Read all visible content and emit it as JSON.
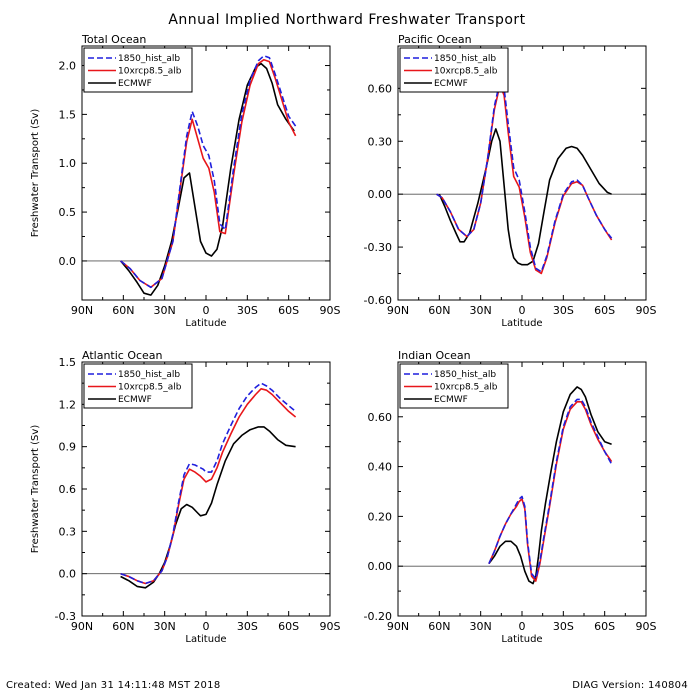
{
  "title": "Annual Implied Northward Freshwater Transport",
  "footer": {
    "created": "Created: Wed Jan 31 14:11:48 MST 2018",
    "version": "DIAG Version: 140804"
  },
  "colors": {
    "hist": "#1f1fdd",
    "rcp": "#e8161a",
    "ecmwf": "#000000",
    "zero_line": "#555555",
    "frame": "#000000"
  },
  "chart_data": [
    {
      "type": "line",
      "title": "Total Ocean",
      "xlabel": "Latitude",
      "ylabel": "Freshwater Transport (Sv)",
      "xlim": [
        90,
        -90
      ],
      "ylim": [
        -0.4,
        2.2
      ],
      "yticks": [
        2.0,
        1.5,
        1.0,
        0.5,
        0.0
      ],
      "ytick_labels": [
        "2.0",
        "1.5",
        "1.0",
        "0.5",
        "0.0"
      ],
      "xticks": [
        90,
        60,
        30,
        0,
        -30,
        -60,
        -90
      ],
      "xtick_labels": [
        "90N",
        "60N",
        "30N",
        "0",
        "30S",
        "60S",
        "90S"
      ],
      "legend": [
        "1850_hist_alb",
        "10xrcp8.5_alb",
        "ECMWF"
      ],
      "series": [
        {
          "name": "1850_hist_alb",
          "x": [
            62,
            55,
            48,
            40,
            32,
            24,
            18,
            14,
            10,
            6,
            2,
            -2,
            -6,
            -10,
            -14,
            -20,
            -26,
            -32,
            -38,
            -42,
            -46,
            -50,
            -55,
            -60,
            -65
          ],
          "y": [
            0.0,
            -0.08,
            -0.2,
            -0.27,
            -0.18,
            0.2,
            0.85,
            1.28,
            1.53,
            1.38,
            1.18,
            1.08,
            0.82,
            0.38,
            0.32,
            0.95,
            1.5,
            1.85,
            2.05,
            2.1,
            2.08,
            1.92,
            1.7,
            1.48,
            1.38
          ]
        },
        {
          "name": "10xrcp8.5_alb",
          "x": [
            62,
            55,
            48,
            40,
            32,
            24,
            18,
            14,
            10,
            6,
            2,
            -2,
            -6,
            -10,
            -14,
            -20,
            -26,
            -32,
            -38,
            -42,
            -46,
            -50,
            -55,
            -60,
            -65
          ],
          "y": [
            0.0,
            -0.08,
            -0.2,
            -0.27,
            -0.18,
            0.2,
            0.82,
            1.22,
            1.45,
            1.25,
            1.05,
            0.95,
            0.7,
            0.3,
            0.28,
            0.88,
            1.42,
            1.8,
            2.02,
            2.06,
            2.04,
            1.88,
            1.65,
            1.42,
            1.28
          ]
        },
        {
          "name": "ECMWF",
          "x": [
            62,
            56,
            50,
            45,
            40,
            35,
            30,
            25,
            20,
            16,
            12,
            8,
            4,
            0,
            -4,
            -8,
            -12,
            -18,
            -24,
            -30,
            -36,
            -40,
            -44,
            -48,
            -52,
            -58,
            -64
          ],
          "y": [
            0.0,
            -0.1,
            -0.22,
            -0.33,
            -0.35,
            -0.25,
            -0.05,
            0.2,
            0.55,
            0.85,
            0.9,
            0.55,
            0.2,
            0.08,
            0.05,
            0.12,
            0.35,
            0.95,
            1.45,
            1.8,
            1.98,
            2.02,
            1.97,
            1.82,
            1.6,
            1.45,
            1.33
          ]
        }
      ]
    },
    {
      "type": "line",
      "title": "Pacific Ocean",
      "xlabel": "Latitude",
      "ylabel": "",
      "xlim": [
        90,
        -90
      ],
      "ylim": [
        -0.6,
        0.84
      ],
      "yticks": [
        0.6,
        0.3,
        0.0,
        -0.3,
        -0.6
      ],
      "ytick_labels": [
        "0.60",
        "0.30",
        "0.00",
        "-0.30",
        "-0.60"
      ],
      "xticks": [
        90,
        60,
        30,
        0,
        -30,
        -60,
        -90
      ],
      "xtick_labels": [
        "90N",
        "60N",
        "30N",
        "0",
        "30S",
        "60S",
        "90S"
      ],
      "legend": [
        "1850_hist_alb",
        "10xrcp8.5_alb",
        "ECMWF"
      ],
      "series": [
        {
          "name": "1850_hist_alb",
          "x": [
            62,
            58,
            52,
            46,
            40,
            35,
            30,
            25,
            20,
            16,
            13,
            10,
            6,
            2,
            -2,
            -6,
            -10,
            -14,
            -18,
            -24,
            -30,
            -36,
            -40,
            -44,
            -48,
            -54,
            -60,
            -65
          ],
          "y": [
            0.0,
            -0.02,
            -0.1,
            -0.2,
            -0.24,
            -0.2,
            -0.05,
            0.2,
            0.5,
            0.64,
            0.6,
            0.4,
            0.15,
            0.08,
            -0.1,
            -0.3,
            -0.42,
            -0.44,
            -0.35,
            -0.15,
            0.0,
            0.07,
            0.08,
            0.05,
            -0.02,
            -0.12,
            -0.2,
            -0.25
          ]
        },
        {
          "name": "10xrcp8.5_alb",
          "x": [
            62,
            58,
            52,
            46,
            40,
            35,
            30,
            25,
            20,
            16,
            13,
            10,
            6,
            2,
            -2,
            -6,
            -10,
            -14,
            -18,
            -24,
            -30,
            -36,
            -40,
            -44,
            -48,
            -54,
            -60,
            -65
          ],
          "y": [
            0.0,
            -0.02,
            -0.1,
            -0.2,
            -0.24,
            -0.2,
            -0.05,
            0.2,
            0.48,
            0.62,
            0.56,
            0.35,
            0.1,
            0.04,
            -0.13,
            -0.33,
            -0.43,
            -0.45,
            -0.36,
            -0.16,
            -0.01,
            0.06,
            0.07,
            0.05,
            -0.02,
            -0.12,
            -0.2,
            -0.26
          ]
        },
        {
          "name": "ECMWF",
          "x": [
            60,
            56,
            52,
            48,
            45,
            42,
            38,
            32,
            26,
            22,
            19,
            16,
            13,
            10,
            8,
            6,
            3,
            0,
            -4,
            -8,
            -12,
            -16,
            -20,
            -26,
            -32,
            -36,
            -40,
            -44,
            -50,
            -56,
            -62,
            -65
          ],
          "y": [
            0.0,
            -0.07,
            -0.15,
            -0.22,
            -0.27,
            -0.27,
            -0.22,
            -0.05,
            0.15,
            0.3,
            0.37,
            0.3,
            0.05,
            -0.2,
            -0.3,
            -0.36,
            -0.39,
            -0.4,
            -0.4,
            -0.38,
            -0.28,
            -0.1,
            0.08,
            0.2,
            0.26,
            0.27,
            0.26,
            0.22,
            0.14,
            0.06,
            0.01,
            0.0
          ]
        }
      ]
    },
    {
      "type": "line",
      "title": "Atlantic Ocean",
      "xlabel": "Latitude",
      "ylabel": "Freshwater Transport (Sv)",
      "xlim": [
        90,
        -90
      ],
      "ylim": [
        -0.3,
        1.5
      ],
      "yticks": [
        1.5,
        1.2,
        0.9,
        0.6,
        0.3,
        0.0,
        -0.3
      ],
      "ytick_labels": [
        "1.5",
        "1.2",
        "0.9",
        "0.6",
        "0.3",
        "0.0",
        "-0.3"
      ],
      "xticks": [
        90,
        60,
        30,
        0,
        -30,
        -60,
        -90
      ],
      "xtick_labels": [
        "90N",
        "60N",
        "30N",
        "0",
        "30S",
        "60S",
        "90S"
      ],
      "legend": [
        "1850_hist_alb",
        "10xrcp8.5_alb",
        "ECMWF"
      ],
      "series": [
        {
          "name": "1850_hist_alb",
          "x": [
            62,
            56,
            50,
            44,
            38,
            32,
            28,
            24,
            20,
            16,
            12,
            8,
            4,
            2,
            0,
            -4,
            -8,
            -12,
            -18,
            -24,
            -30,
            -36,
            -40,
            -44,
            -48,
            -54,
            -60,
            -65
          ],
          "y": [
            0.0,
            -0.02,
            -0.05,
            -0.07,
            -0.05,
            0.02,
            0.12,
            0.28,
            0.5,
            0.7,
            0.78,
            0.77,
            0.75,
            0.74,
            0.72,
            0.72,
            0.8,
            0.92,
            1.05,
            1.17,
            1.26,
            1.32,
            1.35,
            1.33,
            1.3,
            1.24,
            1.19,
            1.15
          ]
        },
        {
          "name": "10xrcp8.5_alb",
          "x": [
            62,
            56,
            50,
            44,
            38,
            32,
            28,
            24,
            20,
            16,
            12,
            8,
            4,
            2,
            0,
            -4,
            -8,
            -12,
            -18,
            -24,
            -30,
            -36,
            -40,
            -44,
            -48,
            -54,
            -60,
            -65
          ],
          "y": [
            0.0,
            -0.02,
            -0.05,
            -0.07,
            -0.05,
            0.02,
            0.12,
            0.27,
            0.48,
            0.67,
            0.74,
            0.72,
            0.69,
            0.67,
            0.65,
            0.67,
            0.75,
            0.86,
            0.99,
            1.11,
            1.2,
            1.27,
            1.31,
            1.3,
            1.27,
            1.21,
            1.15,
            1.11
          ]
        },
        {
          "name": "ECMWF",
          "x": [
            62,
            56,
            50,
            44,
            38,
            34,
            30,
            26,
            22,
            18,
            14,
            10,
            6,
            4,
            0,
            -4,
            -8,
            -14,
            -20,
            -26,
            -32,
            -38,
            -42,
            -46,
            -52,
            -58,
            -65
          ],
          "y": [
            -0.02,
            -0.05,
            -0.09,
            -0.1,
            -0.06,
            0.0,
            0.08,
            0.2,
            0.35,
            0.46,
            0.49,
            0.47,
            0.43,
            0.41,
            0.42,
            0.5,
            0.63,
            0.8,
            0.92,
            0.98,
            1.02,
            1.04,
            1.04,
            1.01,
            0.95,
            0.91,
            0.9
          ]
        }
      ]
    },
    {
      "type": "line",
      "title": "Indian Ocean",
      "xlabel": "Latitude",
      "ylabel": "",
      "xlim": [
        90,
        -90
      ],
      "ylim": [
        -0.2,
        0.82
      ],
      "yticks": [
        0.6,
        0.4,
        0.2,
        0.0,
        -0.2
      ],
      "ytick_labels": [
        "0.60",
        "0.40",
        "0.20",
        "0.00",
        "-0.20"
      ],
      "xticks": [
        90,
        60,
        30,
        0,
        -30,
        -60,
        -90
      ],
      "xtick_labels": [
        "90N",
        "60N",
        "30N",
        "0",
        "30S",
        "60S",
        "90S"
      ],
      "legend": [
        "1850_hist_alb",
        "10xrcp8.5_alb",
        "ECMWF"
      ],
      "series": [
        {
          "name": "1850_hist_alb",
          "x": [
            24,
            20,
            16,
            12,
            8,
            4,
            2,
            0,
            -2,
            -4,
            -7,
            -10,
            -13,
            -16,
            -20,
            -25,
            -30,
            -35,
            -40,
            -43,
            -46,
            -50,
            -55,
            -60,
            -65
          ],
          "y": [
            0.01,
            0.06,
            0.12,
            0.17,
            0.21,
            0.25,
            0.27,
            0.28,
            0.24,
            0.1,
            -0.03,
            -0.05,
            0.02,
            0.12,
            0.25,
            0.42,
            0.56,
            0.64,
            0.67,
            0.67,
            0.64,
            0.58,
            0.52,
            0.46,
            0.41
          ]
        },
        {
          "name": "10xrcp8.5_alb",
          "x": [
            24,
            20,
            16,
            12,
            8,
            4,
            2,
            0,
            -2,
            -4,
            -7,
            -10,
            -13,
            -16,
            -20,
            -25,
            -30,
            -35,
            -40,
            -43,
            -46,
            -50,
            -55,
            -60,
            -65
          ],
          "y": [
            0.01,
            0.06,
            0.12,
            0.17,
            0.21,
            0.24,
            0.26,
            0.27,
            0.23,
            0.09,
            -0.04,
            -0.06,
            0.01,
            0.11,
            0.24,
            0.41,
            0.55,
            0.63,
            0.66,
            0.66,
            0.63,
            0.57,
            0.51,
            0.46,
            0.42
          ]
        },
        {
          "name": "ECMWF",
          "x": [
            24,
            20,
            16,
            12,
            8,
            4,
            1,
            -2,
            -5,
            -8,
            -10,
            -12,
            -14,
            -17,
            -21,
            -25,
            -30,
            -35,
            -40,
            -43,
            -46,
            -50,
            -55,
            -60,
            -65
          ],
          "y": [
            0.01,
            0.04,
            0.08,
            0.1,
            0.1,
            0.08,
            0.04,
            -0.02,
            -0.06,
            -0.07,
            -0.04,
            0.04,
            0.14,
            0.25,
            0.38,
            0.5,
            0.62,
            0.69,
            0.72,
            0.71,
            0.68,
            0.61,
            0.54,
            0.5,
            0.49
          ]
        }
      ]
    }
  ]
}
